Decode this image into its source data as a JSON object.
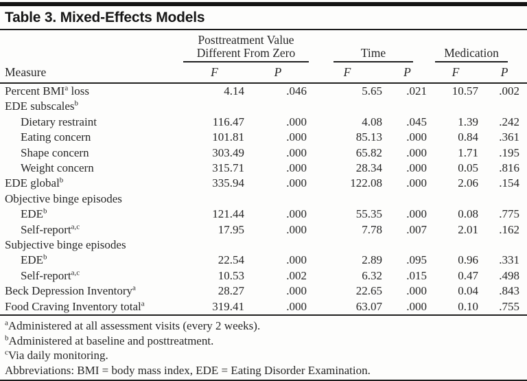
{
  "title": "Table 3. Mixed-Effects Models",
  "colors": {
    "ink": "#262626",
    "rule": "#1c1c1c",
    "background": "#fdfdfc"
  },
  "table": {
    "measure_header": "Measure",
    "groups": [
      {
        "label": "Posttreatment Value Different From Zero",
        "sub": [
          "F",
          "P"
        ]
      },
      {
        "label": "Time",
        "sub": [
          "F",
          "P"
        ]
      },
      {
        "label": "Medication",
        "sub": [
          "F",
          "P"
        ]
      }
    ],
    "rows": [
      {
        "label": [
          [
            "t",
            "Percent BMI"
          ],
          [
            "sup",
            "a"
          ],
          [
            "t",
            " loss"
          ]
        ],
        "indent": 0,
        "values": [
          "4.14",
          ".046",
          "5.65",
          ".021",
          "10.57",
          ".002"
        ]
      },
      {
        "label": [
          [
            "t",
            "EDE subscales"
          ],
          [
            "sup",
            "b"
          ]
        ],
        "indent": 0,
        "values": []
      },
      {
        "label": [
          [
            "t",
            "Dietary restraint"
          ]
        ],
        "indent": 1,
        "values": [
          "116.47",
          ".000",
          "4.08",
          ".045",
          "1.39",
          ".242"
        ]
      },
      {
        "label": [
          [
            "t",
            "Eating concern"
          ]
        ],
        "indent": 1,
        "values": [
          "101.81",
          ".000",
          "85.13",
          ".000",
          "0.84",
          ".361"
        ]
      },
      {
        "label": [
          [
            "t",
            "Shape concern"
          ]
        ],
        "indent": 1,
        "values": [
          "303.49",
          ".000",
          "65.82",
          ".000",
          "1.71",
          ".195"
        ]
      },
      {
        "label": [
          [
            "t",
            "Weight concern"
          ]
        ],
        "indent": 1,
        "values": [
          "315.71",
          ".000",
          "28.34",
          ".000",
          "0.05",
          ".816"
        ]
      },
      {
        "label": [
          [
            "t",
            "EDE global"
          ],
          [
            "sup",
            "b"
          ]
        ],
        "indent": 0,
        "values": [
          "335.94",
          ".000",
          "122.08",
          ".000",
          "2.06",
          ".154"
        ]
      },
      {
        "label": [
          [
            "t",
            "Objective binge episodes"
          ]
        ],
        "indent": 0,
        "values": []
      },
      {
        "label": [
          [
            "t",
            "EDE"
          ],
          [
            "sup",
            "b"
          ]
        ],
        "indent": 1,
        "values": [
          "121.44",
          ".000",
          "55.35",
          ".000",
          "0.08",
          ".775"
        ]
      },
      {
        "label": [
          [
            "t",
            "Self-report"
          ],
          [
            "sup",
            "a,c"
          ]
        ],
        "indent": 1,
        "values": [
          "17.95",
          ".000",
          "7.78",
          ".007",
          "2.01",
          ".162"
        ]
      },
      {
        "label": [
          [
            "t",
            "Subjective binge episodes"
          ]
        ],
        "indent": 0,
        "values": []
      },
      {
        "label": [
          [
            "t",
            "EDE"
          ],
          [
            "sup",
            "b"
          ]
        ],
        "indent": 1,
        "values": [
          "22.54",
          ".000",
          "2.89",
          ".095",
          "0.96",
          ".331"
        ]
      },
      {
        "label": [
          [
            "t",
            "Self-report"
          ],
          [
            "sup",
            "a,c"
          ]
        ],
        "indent": 1,
        "values": [
          "10.53",
          ".002",
          "6.32",
          ".015",
          "0.47",
          ".498"
        ]
      },
      {
        "label": [
          [
            "t",
            "Beck Depression Inventory"
          ],
          [
            "sup",
            "a"
          ]
        ],
        "indent": 0,
        "values": [
          "28.27",
          ".000",
          "22.65",
          ".000",
          "0.04",
          ".843"
        ]
      },
      {
        "label": [
          [
            "t",
            "Food Craving Inventory total"
          ],
          [
            "sup",
            "a"
          ]
        ],
        "indent": 0,
        "values": [
          "319.41",
          ".000",
          "63.07",
          ".000",
          "0.10",
          ".755"
        ]
      }
    ]
  },
  "footnotes": [
    {
      "sup": "a",
      "text": "Administered at all assessment visits (every 2 weeks)."
    },
    {
      "sup": "b",
      "text": "Administered at baseline and posttreatment."
    },
    {
      "sup": "c",
      "text": "Via daily monitoring."
    },
    {
      "sup": "",
      "text": "Abbreviations: BMI = body mass index, EDE = Eating Disorder Examination."
    }
  ]
}
